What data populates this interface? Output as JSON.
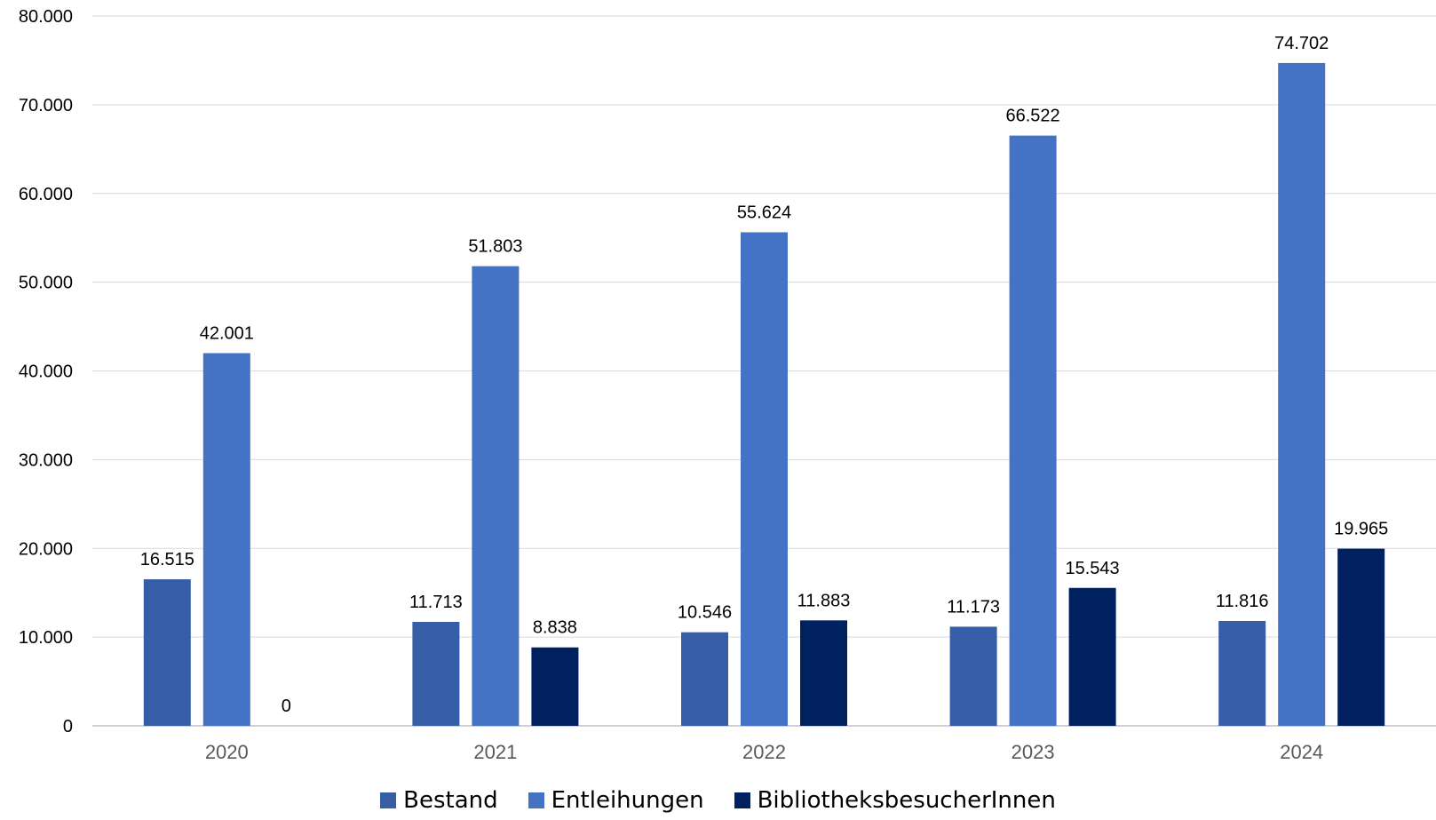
{
  "chart_data": {
    "type": "bar",
    "title": "",
    "xlabel": "",
    "ylabel": "",
    "categories": [
      "2020",
      "2021",
      "2022",
      "2023",
      "2024"
    ],
    "ylim": [
      0,
      80000
    ],
    "yticks": [
      0,
      10000,
      20000,
      30000,
      40000,
      50000,
      60000,
      70000,
      80000
    ],
    "ytick_labels": [
      "0",
      "10.000",
      "20.000",
      "30.000",
      "40.000",
      "50.000",
      "60.000",
      "70.000",
      "80.000"
    ],
    "grid": true,
    "legend_position": "bottom",
    "series": [
      {
        "name": "Bestand",
        "color": "#365EA7",
        "values": [
          16515,
          11713,
          10546,
          11173,
          11816
        ],
        "labels": [
          "16.515",
          "11.713",
          "10.546",
          "11.173",
          "11.816"
        ]
      },
      {
        "name": "Entleihungen",
        "color": "#4472C4",
        "values": [
          42001,
          51803,
          55624,
          66522,
          74702
        ],
        "labels": [
          "42.001",
          "51.803",
          "55.624",
          "66.522",
          "74.702"
        ]
      },
      {
        "name": "BibliotheksbesucherInnen",
        "color": "#002060",
        "values": [
          0,
          8838,
          11883,
          15543,
          19965
        ],
        "labels": [
          "0",
          "8.838",
          "11.883",
          "15.543",
          "19.965"
        ]
      }
    ]
  }
}
